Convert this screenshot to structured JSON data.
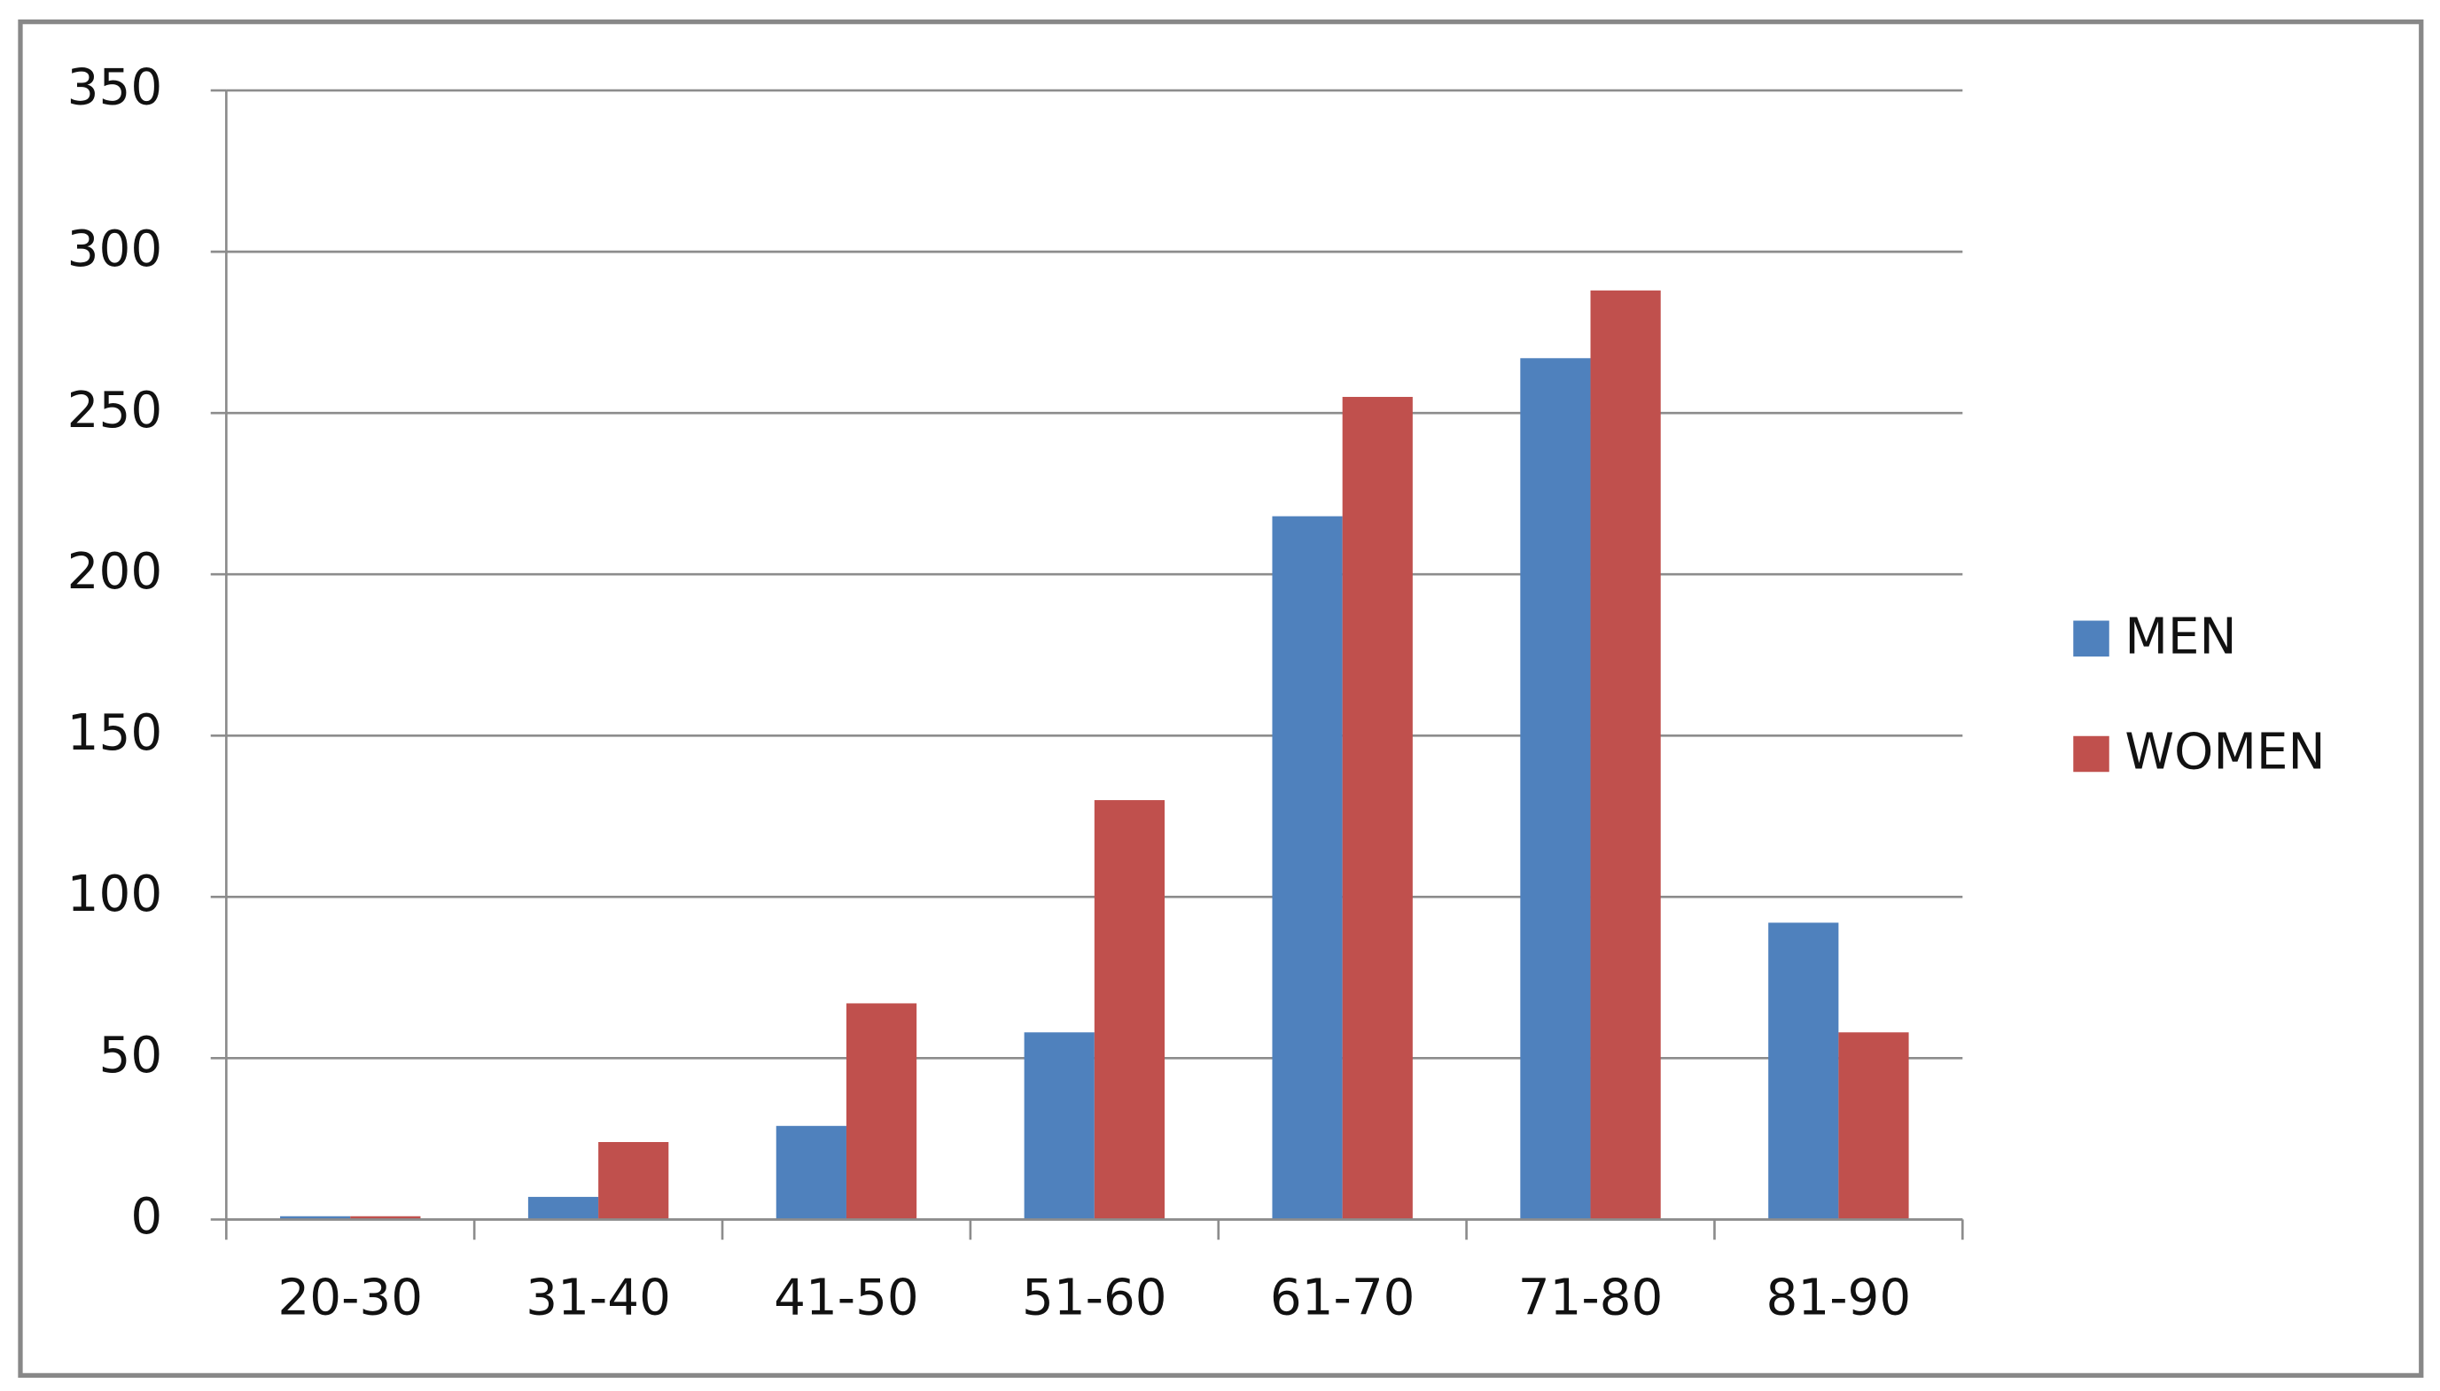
{
  "chart_data": {
    "type": "bar",
    "categories": [
      "20-30",
      "31-40",
      "41-50",
      "51-60",
      "61-70",
      "71-80",
      "81-90"
    ],
    "series": [
      {
        "name": "MEN",
        "color": "#4f81bd",
        "values": [
          1,
          7,
          29,
          58,
          218,
          267,
          92
        ]
      },
      {
        "name": "WOMEN",
        "color": "#c0504d",
        "values": [
          1,
          24,
          67,
          130,
          255,
          288,
          58
        ]
      }
    ],
    "ylim": [
      0,
      350
    ],
    "yticks": [
      0,
      50,
      100,
      150,
      200,
      250,
      300,
      350
    ],
    "grid": true,
    "legend": "right"
  }
}
